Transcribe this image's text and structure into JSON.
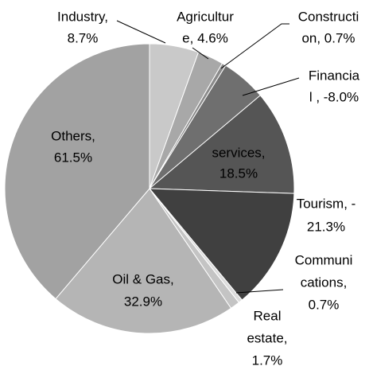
{
  "chart_data": {
    "type": "pie",
    "values": [
      8.7,
      4.6,
      0.7,
      -8.0,
      18.5,
      -21.3,
      0.7,
      1.7,
      32.9,
      61.5
    ],
    "labels": [
      [
        "Industry,",
        "8.7%"
      ],
      [
        "Agricultur",
        "e, 4.6%"
      ],
      [
        "Constructi",
        "on, 0.7%"
      ],
      [
        "Financia",
        "l , -8.0%"
      ],
      [
        "services,",
        "18.5%"
      ],
      [
        "Tourism, -",
        "21.3%"
      ],
      [
        "Communi",
        "cations,",
        "0.7%"
      ],
      [
        "Real",
        "estate,",
        "1.7%"
      ],
      [
        "Oil & Gas,",
        "32.9%"
      ],
      [
        "Others,",
        "61.5%"
      ]
    ],
    "colors": [
      "#c9c9c9",
      "#a8a8a8",
      "#8a8a8a",
      "#6f6f6f",
      "#555555",
      "#404040",
      "#dcdcdc",
      "#c4c4c4",
      "#b5b5b5",
      "#a2a2a2"
    ]
  }
}
